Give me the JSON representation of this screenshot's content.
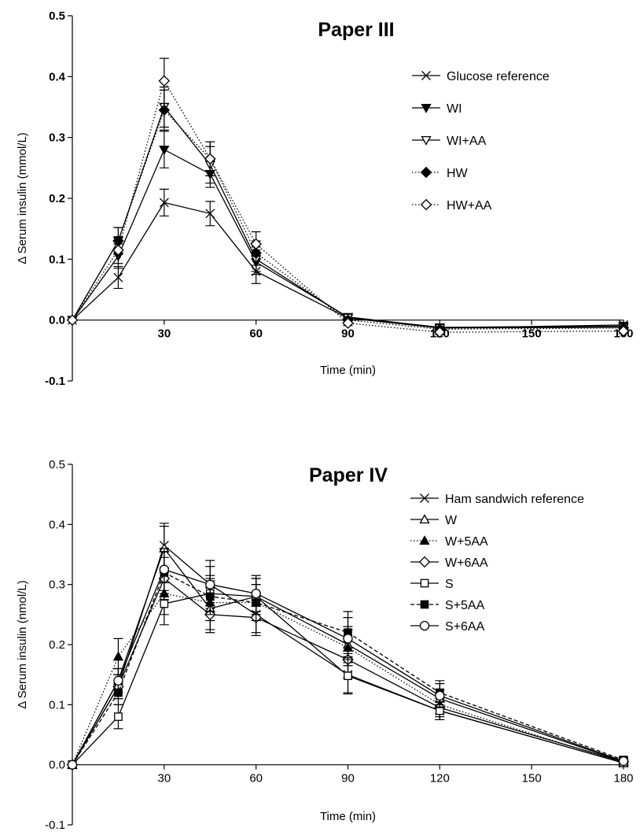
{
  "chart_data": [
    {
      "type": "line",
      "title": "Paper III",
      "xlabel": "Time (min)",
      "ylabel": "Δ Serum insulin (mmol/L)",
      "xlim": [
        0,
        180
      ],
      "ylim": [
        -0.1,
        0.5
      ],
      "xticks": [
        "30",
        "60",
        "90",
        "120",
        "150",
        "180"
      ],
      "yticks": [
        "-0.1",
        "0.0",
        "0.1",
        "0.2",
        "0.3",
        "0.4",
        "0.5"
      ],
      "tick_style": "bold",
      "legend_position": "top-right",
      "x": [
        0,
        15,
        30,
        45,
        60,
        90,
        120,
        180
      ],
      "series": [
        {
          "name": "Glucose reference",
          "marker": "x",
          "line": "solid",
          "values": [
            0.0,
            0.07,
            0.193,
            0.175,
            0.08,
            0.003,
            -0.013,
            -0.008
          ],
          "err": [
            0,
            0.018,
            0.022,
            0.02,
            0.02,
            0.004,
            0.004,
            0.004
          ]
        },
        {
          "name": "WI",
          "marker": "triangle-down-filled",
          "line": "solid",
          "values": [
            0.0,
            0.105,
            0.28,
            0.24,
            0.095,
            0.005,
            -0.012,
            -0.01
          ],
          "err": [
            0,
            0.02,
            0.03,
            0.022,
            0.02,
            0.004,
            0.004,
            0.004
          ]
        },
        {
          "name": "WI+AA",
          "marker": "triangle-down-open",
          "line": "solid",
          "values": [
            0.0,
            0.13,
            0.35,
            0.255,
            0.1,
            0.004,
            -0.013,
            -0.012
          ],
          "err": [
            0,
            0.022,
            0.033,
            0.03,
            0.02,
            0.004,
            0.004,
            0.004
          ]
        },
        {
          "name": "HW",
          "marker": "diamond-filled",
          "line": "dotted",
          "values": [
            0.0,
            0.13,
            0.345,
            0.265,
            0.11,
            0.0,
            -0.015,
            -0.013
          ],
          "err": [
            0,
            0.022,
            0.033,
            0.028,
            0.02,
            0.004,
            0.004,
            0.004
          ]
        },
        {
          "name": "HW+AA",
          "marker": "diamond-open",
          "line": "dotted",
          "values": [
            0.0,
            0.115,
            0.393,
            0.265,
            0.125,
            -0.005,
            -0.02,
            -0.018
          ],
          "err": [
            0,
            0.022,
            0.037,
            0.028,
            0.02,
            0.004,
            0.004,
            0.004
          ]
        }
      ]
    },
    {
      "type": "line",
      "title": "Paper IV",
      "xlabel": "Time (min)",
      "ylabel": "Δ Serum insulin  (nmol/L)",
      "xlim": [
        0,
        180
      ],
      "ylim": [
        -0.1,
        0.5
      ],
      "xticks": [
        "30",
        "60",
        "90",
        "120",
        "150",
        "180"
      ],
      "yticks": [
        "-0.1",
        "0.0",
        "0.1",
        "0.2",
        "0.3",
        "0.4",
        "0.5"
      ],
      "tick_style": "regular",
      "legend_position": "top-right",
      "x": [
        0,
        15,
        30,
        45,
        60,
        90,
        120,
        180
      ],
      "series": [
        {
          "name": "Ham sandwich reference",
          "marker": "x",
          "line": "solid",
          "values": [
            0.0,
            0.13,
            0.365,
            0.3,
            0.25,
            0.15,
            0.09,
            0.003
          ],
          "err": [
            0,
            0.02,
            0.037,
            0.04,
            0.03,
            0.03,
            0.015,
            0.005
          ]
        },
        {
          "name": "W",
          "marker": "triangle-up-open",
          "line": "solid",
          "values": [
            0.0,
            0.14,
            0.36,
            0.26,
            0.28,
            0.2,
            0.11,
            0.005
          ],
          "err": [
            0,
            0.02,
            0.037,
            0.035,
            0.03,
            0.03,
            0.015,
            0.005
          ]
        },
        {
          "name": "W+5AA",
          "marker": "triangle-up-filled",
          "line": "dotted",
          "values": [
            0.0,
            0.18,
            0.285,
            0.27,
            0.27,
            0.195,
            0.1,
            0.003
          ],
          "err": [
            0,
            0.03,
            0.035,
            0.03,
            0.03,
            0.03,
            0.015,
            0.005
          ]
        },
        {
          "name": "W+6AA",
          "marker": "diamond-open",
          "line": "solid",
          "values": [
            0.0,
            0.13,
            0.31,
            0.25,
            0.245,
            0.175,
            0.095,
            0.005
          ],
          "err": [
            0,
            0.02,
            0.035,
            0.03,
            0.03,
            0.03,
            0.015,
            0.005
          ]
        },
        {
          "name": "S",
          "marker": "square-open",
          "line": "solid",
          "values": [
            0.0,
            0.08,
            0.268,
            0.285,
            0.28,
            0.148,
            0.09,
            0.003
          ],
          "err": [
            0,
            0.02,
            0.035,
            0.03,
            0.03,
            0.03,
            0.015,
            0.005
          ]
        },
        {
          "name": "S+5AA",
          "marker": "square-filled",
          "line": "dashed",
          "values": [
            0.0,
            0.12,
            0.32,
            0.28,
            0.27,
            0.22,
            0.12,
            0.008
          ],
          "err": [
            0,
            0.02,
            0.035,
            0.03,
            0.03,
            0.035,
            0.02,
            0.005
          ]
        },
        {
          "name": "S+6AA",
          "marker": "circle-open",
          "line": "solid",
          "values": [
            0.0,
            0.14,
            0.325,
            0.3,
            0.285,
            0.21,
            0.115,
            0.006
          ],
          "err": [
            0,
            0.02,
            0.035,
            0.03,
            0.03,
            0.035,
            0.02,
            0.005
          ]
        }
      ]
    }
  ]
}
